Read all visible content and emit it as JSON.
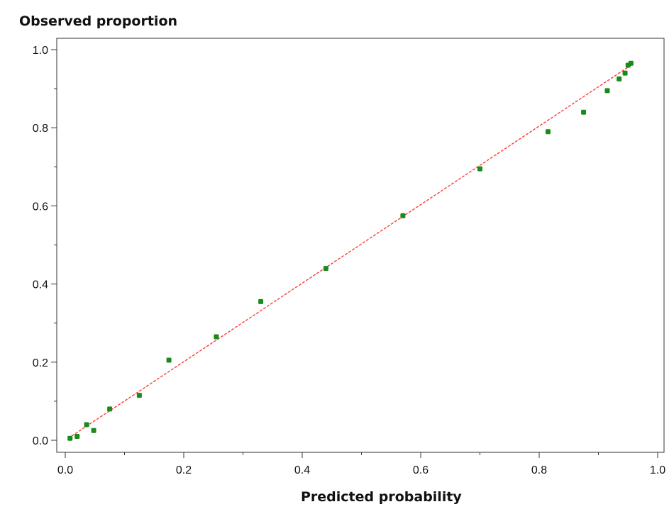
{
  "chart_data": {
    "type": "scatter",
    "ylabel": "Observed proportion",
    "xlabel": "Predicted probability",
    "xlim": [
      0.0,
      1.0
    ],
    "ylim": [
      0.0,
      1.0
    ],
    "x_ticks": [
      "0.0",
      "0.2",
      "0.4",
      "0.6",
      "0.8",
      "1.0"
    ],
    "y_ticks": [
      "0.0",
      "0.2",
      "0.4",
      "0.6",
      "0.8",
      "1.0"
    ],
    "grid": false,
    "series": [
      {
        "type": "scatter",
        "color": "#1a8a1a",
        "x": [
          0.008,
          0.02,
          0.036,
          0.048,
          0.075,
          0.125,
          0.175,
          0.255,
          0.33,
          0.44,
          0.57,
          0.7,
          0.815,
          0.875,
          0.915,
          0.935,
          0.945,
          0.95,
          0.955
        ],
        "y": [
          0.005,
          0.01,
          0.04,
          0.025,
          0.08,
          0.115,
          0.205,
          0.265,
          0.355,
          0.44,
          0.575,
          0.695,
          0.79,
          0.84,
          0.895,
          0.925,
          0.94,
          0.96,
          0.965
        ]
      },
      {
        "type": "line",
        "color": "#ff3b3b",
        "style": "dashed",
        "x": [
          0.005,
          0.955
        ],
        "y": [
          0.005,
          0.96
        ]
      }
    ]
  }
}
